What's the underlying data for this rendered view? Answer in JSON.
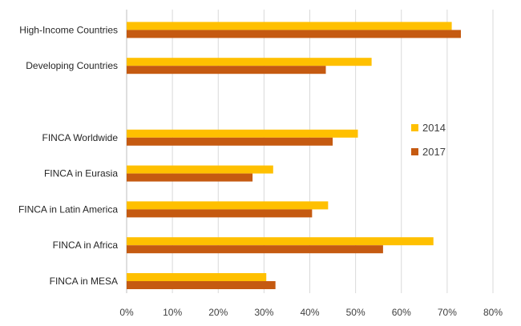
{
  "chart_data": {
    "type": "bar",
    "orientation": "horizontal",
    "categories": [
      "High-Income Countries",
      "Developing Countries",
      "",
      "FINCA Worldwide",
      "FINCA in Eurasia",
      "FINCA in Latin America",
      "FINCA in Africa",
      "FINCA in MESA"
    ],
    "series": [
      {
        "name": "2014",
        "color": "#FFC000",
        "values": [
          71,
          53.5,
          null,
          50.5,
          32,
          44,
          67,
          30.5
        ]
      },
      {
        "name": "2017",
        "color": "#C55A11",
        "values": [
          73,
          43.5,
          null,
          45,
          27.5,
          40.5,
          56,
          32.5
        ]
      }
    ],
    "xlim": [
      0,
      80
    ],
    "xticks": [
      "0%",
      "10%",
      "20%",
      "30%",
      "40%",
      "50%",
      "60%",
      "70%",
      "80%"
    ],
    "title": "",
    "xlabel": "",
    "ylabel": "",
    "grid": "vertical",
    "legend": "right"
  }
}
